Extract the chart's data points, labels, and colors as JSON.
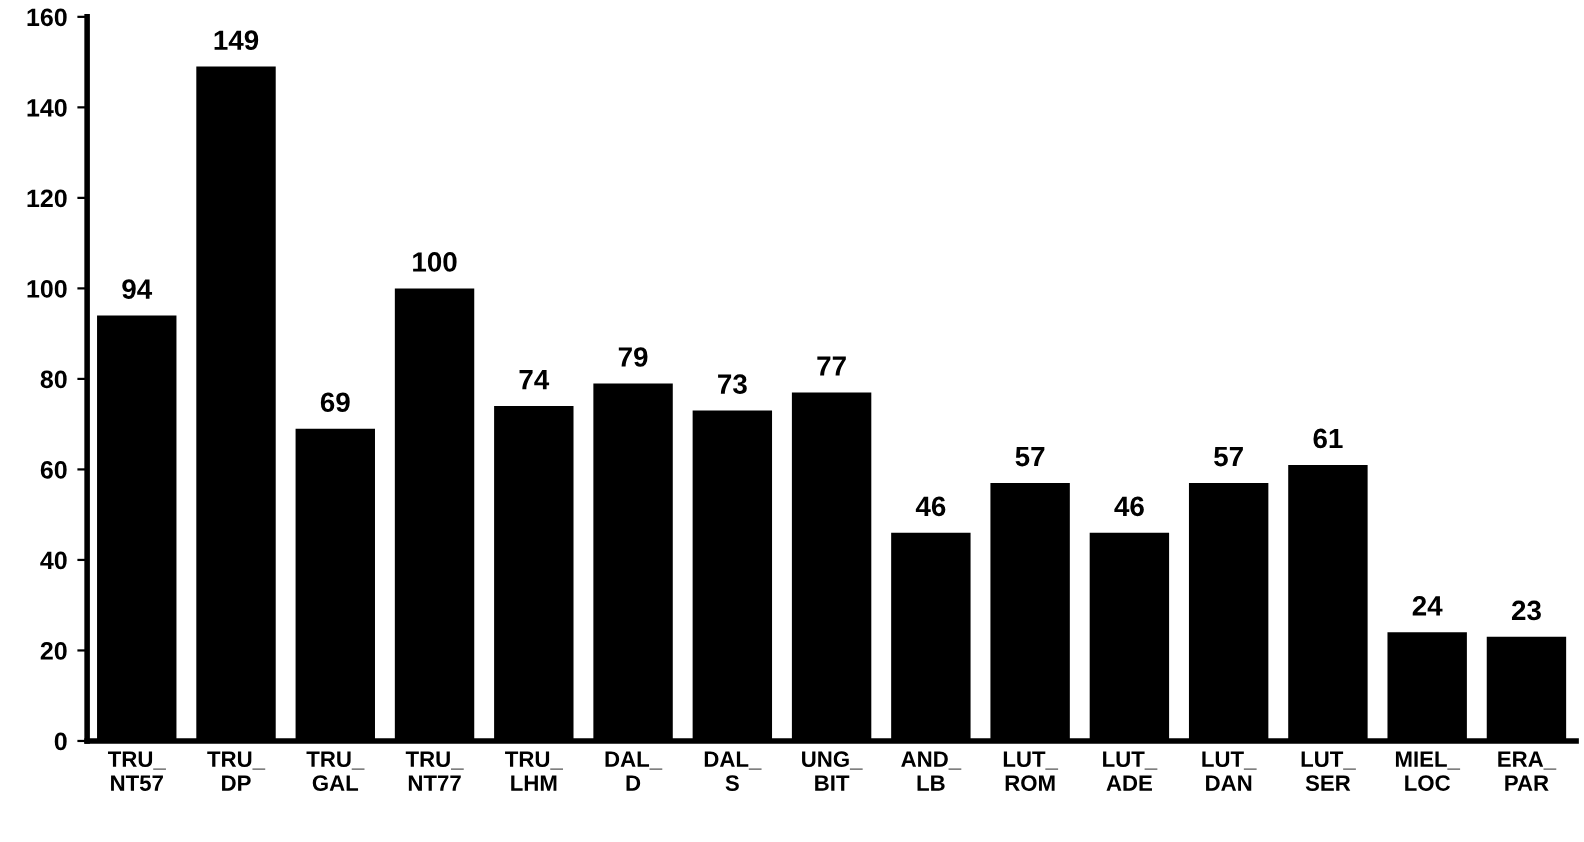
{
  "chart_data": {
    "type": "bar",
    "categories": [
      "TRU_\nNT57",
      "TRU_\nDP",
      "TRU_\nGAL",
      "TRU_\nNT77",
      "TRU_\nLHM",
      "DAL_\nD",
      "DAL_\nS",
      "UNG_\nBIT",
      "AND_\nLB",
      "LUT_\nROM",
      "LUT_\nADE",
      "LUT_\nDAN",
      "LUT_\nSER",
      "MIEL_\nLOC",
      "ERA_\nPAR"
    ],
    "values": [
      94,
      149,
      69,
      100,
      74,
      79,
      73,
      77,
      46,
      57,
      46,
      57,
      61,
      24,
      23
    ],
    "color": "#000000",
    "ylim": [
      0,
      160
    ],
    "yticks": [
      0,
      20,
      40,
      60,
      80,
      100,
      120,
      140,
      160
    ],
    "grid": false,
    "data_labels": true
  }
}
